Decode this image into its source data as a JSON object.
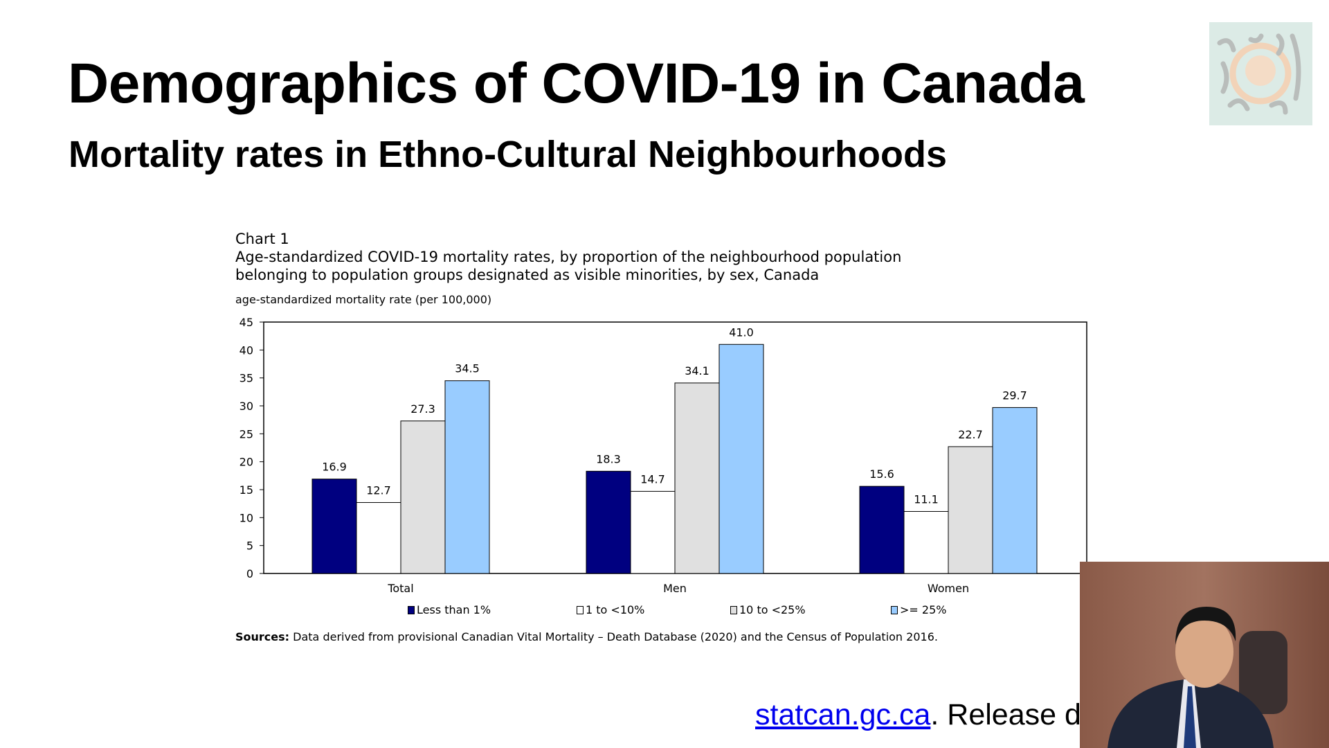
{
  "slide": {
    "title": "Demographics of COVID-19 in Canada",
    "subtitle": "Mortality rates in Ethno-Cultural Neighbourhoods",
    "footer_link": "statcan.gc.ca",
    "footer_text": ". Release d"
  },
  "chart_data": {
    "type": "bar",
    "chart_number": "Chart 1",
    "title_line1": "Age-standardized COVID-19 mortality rates, by proportion of the neighbourhood  population",
    "title_line2": "belonging  to population  groups designated as visible minorities, by sex, Canada",
    "ylabel": "age-standardized mortality rate (per 100,000)",
    "xlabel": "",
    "ylim": [
      0,
      45
    ],
    "yticks": [
      "0",
      "5",
      "10",
      "15",
      "20",
      "25",
      "30",
      "35",
      "40",
      "45"
    ],
    "categories": [
      "Total",
      "Men",
      "Women"
    ],
    "series": [
      {
        "name": "Less than 1%",
        "values": [
          16.9,
          18.3,
          15.6
        ],
        "color": "#000080"
      },
      {
        "name": "1 to <10%",
        "values": [
          12.7,
          14.7,
          11.1
        ],
        "color": "#ffffff"
      },
      {
        "name": "10 to <25%",
        "values": [
          27.3,
          34.1,
          22.7
        ],
        "color": "#e0e0e0"
      },
      {
        "name": ">= 25%",
        "values": [
          34.5,
          41.0,
          29.7
        ],
        "color": "#99ccff"
      }
    ],
    "data_labels": [
      [
        "16.9",
        "18.3",
        "15.6"
      ],
      [
        "12.7",
        "14.7",
        "11.1"
      ],
      [
        "27.3",
        "34.1",
        "22.7"
      ],
      [
        "34.5",
        "41.0",
        "29.7"
      ]
    ],
    "grid": false,
    "legend_position": "bottom",
    "sources_label": "Sources:",
    "sources_text": " Data derived from provisional Canadian Vital Mortality – Death Database (2020) and the Census of Population 2016."
  }
}
